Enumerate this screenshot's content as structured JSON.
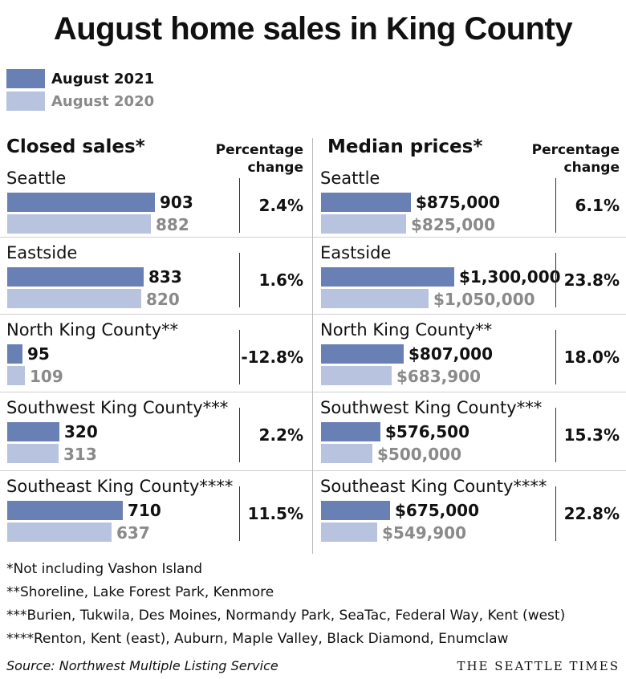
{
  "title": "August home sales in King County",
  "legend": [
    {
      "label": "August 2021",
      "color": "#6980b5"
    },
    {
      "label": "August 2020",
      "color": "#b7c3df"
    }
  ],
  "colors": {
    "current": "#6980b5",
    "previous": "#b7c3df",
    "previous_label": "#8a8a8a"
  },
  "panels": {
    "left": {
      "title": "Closed sales*",
      "pct_header": [
        "Percentage",
        "change"
      ]
    },
    "right": {
      "title": "Median prices*",
      "pct_header": [
        "Percentage",
        "change"
      ]
    }
  },
  "chart_data": [
    {
      "type": "bar",
      "title": "Closed sales*",
      "categories": [
        "Seattle",
        "Eastside",
        "North King County**",
        "Southwest King County***",
        "Southeast King County****"
      ],
      "series": [
        {
          "name": "August 2021",
          "values": [
            903,
            833,
            95,
            320,
            710
          ],
          "labels": [
            "903",
            "833",
            "95",
            "320",
            "710"
          ]
        },
        {
          "name": "August 2020",
          "values": [
            882,
            820,
            109,
            313,
            637
          ],
          "labels": [
            "882",
            "820",
            "109",
            "313",
            "637"
          ]
        }
      ],
      "percentage_change": [
        "2.4%",
        "1.6%",
        "-12.8%",
        "2.2%",
        "11.5%"
      ],
      "xlim": [
        0,
        1000
      ]
    },
    {
      "type": "bar",
      "title": "Median prices*",
      "categories": [
        "Seattle",
        "Eastside",
        "North King County**",
        "Southwest King County***",
        "Southeast King County****"
      ],
      "series": [
        {
          "name": "August 2021",
          "values": [
            875000,
            1300000,
            807000,
            576500,
            675000
          ],
          "labels": [
            "$875,000",
            "$1,300,000",
            "$807,000",
            "$576,500",
            "$675,000"
          ]
        },
        {
          "name": "August 2020",
          "values": [
            825000,
            1050000,
            683900,
            500000,
            549900
          ],
          "labels": [
            "$825,000",
            "$1,050,000",
            "$683,900",
            "$500,000",
            "$549,900"
          ]
        }
      ],
      "percentage_change": [
        "6.1%",
        "23.8%",
        "18.0%",
        "15.3%",
        "22.8%"
      ],
      "xlim": [
        0,
        2000000
      ]
    }
  ],
  "footnotes": [
    "*Not including Vashon Island",
    "**Shoreline, Lake Forest Park, Kenmore",
    "***Burien, Tukwila, Des Moines, Normandy Park, SeaTac, Federal Way, Kent (west)",
    "****Renton, Kent (east), Auburn, Maple Valley, Black Diamond, Enumclaw"
  ],
  "source": "Source: Northwest Multiple Listing Service",
  "brand": "THE SEATTLE TIMES"
}
